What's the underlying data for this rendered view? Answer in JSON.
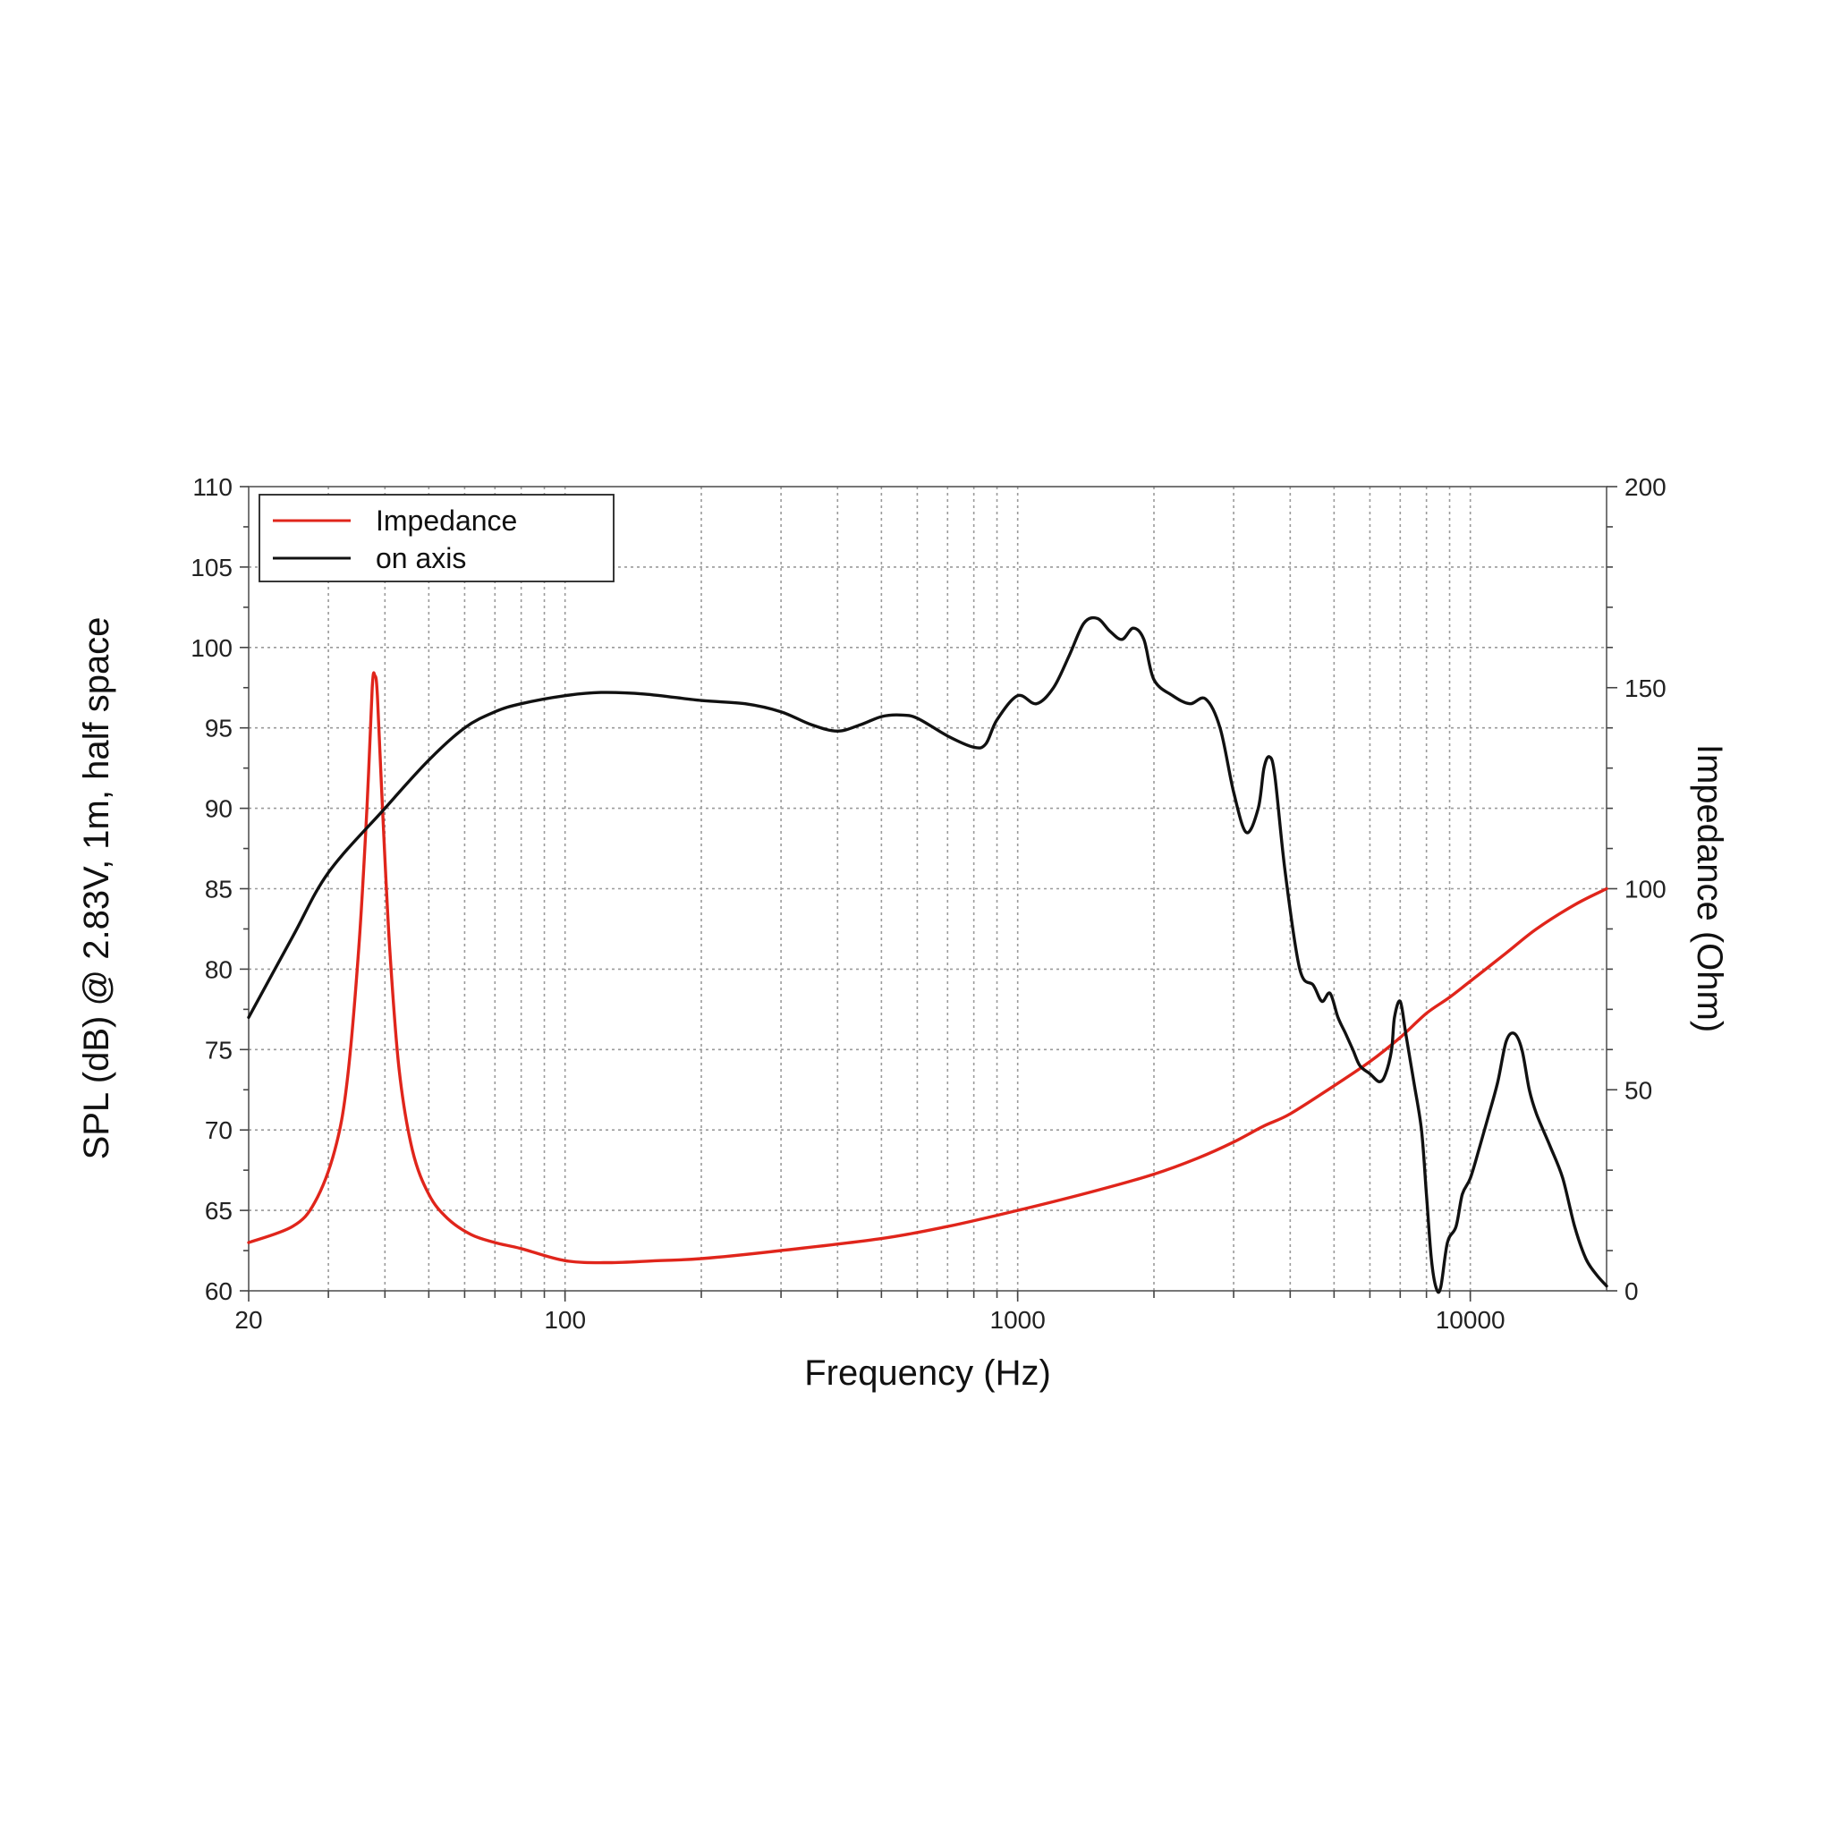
{
  "chart_data": {
    "type": "line",
    "xlabel": "Frequency (Hz)",
    "ylabel": "SPL (dB) @ 2.83V, 1m, half space",
    "y2label": "Impedance (Ohm)",
    "x_scale": "log",
    "xlim": [
      20,
      20000
    ],
    "ylim": [
      60,
      110
    ],
    "y2lim": [
      0,
      200
    ],
    "x_ticks": [
      {
        "value": 20,
        "label": "20"
      },
      {
        "value": 100,
        "label": "100"
      },
      {
        "value": 1000,
        "label": "1000"
      },
      {
        "value": 10000,
        "label": "10000"
      }
    ],
    "y_ticks": [
      "60",
      "65",
      "70",
      "75",
      "80",
      "85",
      "90",
      "95",
      "100",
      "105",
      "110"
    ],
    "y2_ticks": [
      "0",
      "50",
      "100",
      "150",
      "200"
    ],
    "grid": true,
    "legend_position": "top-left",
    "series": [
      {
        "name": "Impedance",
        "axis": "right",
        "color": "#e0251b",
        "points": [
          [
            20,
            12
          ],
          [
            25,
            16
          ],
          [
            28,
            22
          ],
          [
            31,
            35
          ],
          [
            33,
            52
          ],
          [
            35,
            85
          ],
          [
            36.5,
            120
          ],
          [
            37.5,
            150
          ],
          [
            38,
            153
          ],
          [
            38.5,
            148
          ],
          [
            39.5,
            120
          ],
          [
            41,
            85
          ],
          [
            43,
            55
          ],
          [
            46,
            35
          ],
          [
            50,
            24
          ],
          [
            55,
            18
          ],
          [
            62,
            14
          ],
          [
            70,
            12
          ],
          [
            80,
            10.5
          ],
          [
            100,
            7.5
          ],
          [
            125,
            7
          ],
          [
            160,
            7.5
          ],
          [
            200,
            8
          ],
          [
            300,
            10
          ],
          [
            500,
            13
          ],
          [
            700,
            16
          ],
          [
            1000,
            20
          ],
          [
            1500,
            25
          ],
          [
            2000,
            29
          ],
          [
            2500,
            33
          ],
          [
            3000,
            37
          ],
          [
            3500,
            41
          ],
          [
            4000,
            44
          ],
          [
            5000,
            51
          ],
          [
            6000,
            57
          ],
          [
            7000,
            63
          ],
          [
            8000,
            69
          ],
          [
            9000,
            73
          ],
          [
            10000,
            77
          ],
          [
            12000,
            84
          ],
          [
            14000,
            90
          ],
          [
            17000,
            96
          ],
          [
            20000,
            100
          ]
        ]
      },
      {
        "name": "on axis",
        "axis": "left",
        "color": "#111111",
        "points": [
          [
            20,
            77
          ],
          [
            25,
            82
          ],
          [
            30,
            86
          ],
          [
            40,
            90
          ],
          [
            50,
            93
          ],
          [
            60,
            95
          ],
          [
            70,
            96
          ],
          [
            80,
            96.5
          ],
          [
            100,
            97
          ],
          [
            120,
            97.2
          ],
          [
            150,
            97.1
          ],
          [
            200,
            96.7
          ],
          [
            250,
            96.5
          ],
          [
            300,
            96
          ],
          [
            350,
            95.2
          ],
          [
            400,
            94.8
          ],
          [
            450,
            95.2
          ],
          [
            500,
            95.7
          ],
          [
            550,
            95.8
          ],
          [
            600,
            95.6
          ],
          [
            700,
            94.5
          ],
          [
            800,
            93.8
          ],
          [
            850,
            94
          ],
          [
            900,
            95.5
          ],
          [
            1000,
            97
          ],
          [
            1100,
            96.5
          ],
          [
            1200,
            97.5
          ],
          [
            1300,
            99.5
          ],
          [
            1400,
            101.5
          ],
          [
            1500,
            101.8
          ],
          [
            1600,
            101
          ],
          [
            1700,
            100.5
          ],
          [
            1800,
            101.2
          ],
          [
            1900,
            100.5
          ],
          [
            2000,
            98
          ],
          [
            2200,
            97
          ],
          [
            2400,
            96.5
          ],
          [
            2600,
            96.8
          ],
          [
            2800,
            95
          ],
          [
            3000,
            91
          ],
          [
            3200,
            88.5
          ],
          [
            3400,
            90
          ],
          [
            3500,
            92.5
          ],
          [
            3600,
            93.2
          ],
          [
            3700,
            92
          ],
          [
            3900,
            86
          ],
          [
            4200,
            80
          ],
          [
            4500,
            79
          ],
          [
            4700,
            78
          ],
          [
            4900,
            78.5
          ],
          [
            5100,
            77
          ],
          [
            5300,
            76
          ],
          [
            5500,
            75
          ],
          [
            5700,
            74
          ],
          [
            6000,
            73.5
          ],
          [
            6300,
            73
          ],
          [
            6500,
            73.5
          ],
          [
            6700,
            75
          ],
          [
            6800,
            77
          ],
          [
            7000,
            78
          ],
          [
            7200,
            76
          ],
          [
            7500,
            73
          ],
          [
            7800,
            70
          ],
          [
            8000,
            66
          ],
          [
            8200,
            62
          ],
          [
            8400,
            60.2
          ],
          [
            8600,
            60.2
          ],
          [
            8900,
            63
          ],
          [
            9300,
            64
          ],
          [
            9600,
            66
          ],
          [
            10000,
            67
          ],
          [
            10500,
            69
          ],
          [
            11000,
            71
          ],
          [
            11500,
            73
          ],
          [
            12000,
            75.5
          ],
          [
            12500,
            76
          ],
          [
            13000,
            75
          ],
          [
            13500,
            72.5
          ],
          [
            14000,
            71
          ],
          [
            15000,
            69
          ],
          [
            16000,
            67
          ],
          [
            17000,
            64
          ],
          [
            18000,
            62
          ],
          [
            19000,
            61
          ],
          [
            20000,
            60.3
          ]
        ]
      }
    ]
  }
}
